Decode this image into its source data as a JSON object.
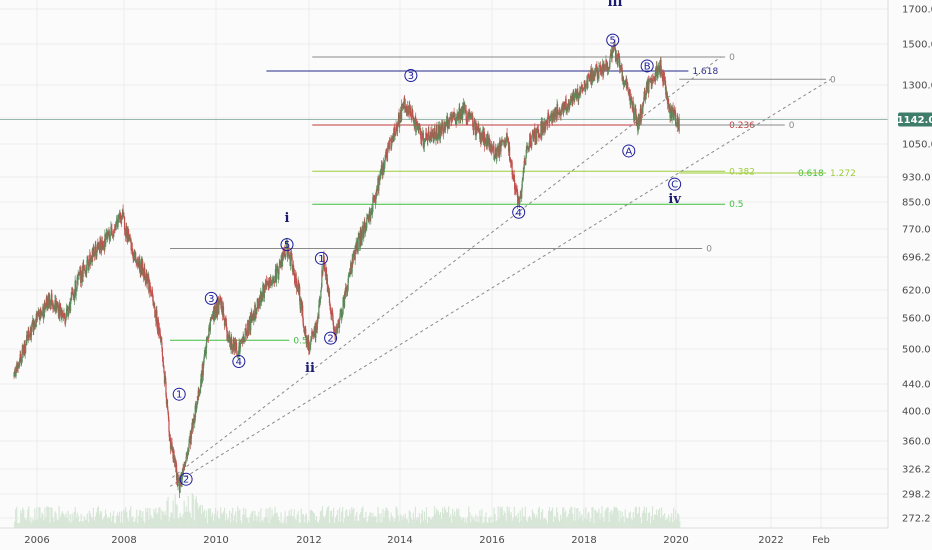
{
  "colors": {
    "background": "#fbfbfb",
    "grid": "#ececec",
    "candle_up": "#5c8a5c",
    "candle_down": "#c0504d",
    "volume": "#d7e6d7",
    "wave_label": "#1c1c9a",
    "price_tag_bg": "#3e7d6a",
    "fib_navy": "#2a2a8a",
    "fib_red": "#c23b3b",
    "fib_green": "#3fbf3f",
    "fib_lime": "#9ccc3a",
    "fib_grey": "#8a8a8a",
    "trendline": "#8a8a8a"
  },
  "chart_data": {
    "type": "candlestick",
    "y_scale": "log",
    "ylim": [
      265,
      1800
    ],
    "y_ticks": [
      "1700.0",
      "1500.0",
      "1300.0",
      "1150.0",
      "1050.0",
      "930.0",
      "850.0",
      "770.0",
      "696.2",
      "620.0",
      "560.0",
      "500.0",
      "440.0",
      "400.0",
      "360.0",
      "326.2",
      "298.2",
      "272.2"
    ],
    "x_ticks": [
      "2006",
      "2008",
      "2010",
      "2012",
      "2014",
      "2016",
      "2018",
      "2020",
      "2022",
      "Feb"
    ],
    "last_price": "1142.0",
    "price_path": [
      [
        2005.5,
        460
      ],
      [
        2005.9,
        540
      ],
      [
        2006.3,
        600
      ],
      [
        2006.6,
        560
      ],
      [
        2006.9,
        640
      ],
      [
        2007.2,
        700
      ],
      [
        2007.5,
        740
      ],
      [
        2007.85,
        810
      ],
      [
        2008.1,
        700
      ],
      [
        2008.4,
        650
      ],
      [
        2008.7,
        520
      ],
      [
        2008.9,
        360
      ],
      [
        2009.1,
        305
      ],
      [
        2009.3,
        350
      ],
      [
        2009.6,
        460
      ],
      [
        2009.8,
        560
      ],
      [
        2010.0,
        590
      ],
      [
        2010.2,
        510
      ],
      [
        2010.4,
        500
      ],
      [
        2010.6,
        540
      ],
      [
        2010.9,
        610
      ],
      [
        2011.2,
        650
      ],
      [
        2011.45,
        720
      ],
      [
        2011.7,
        620
      ],
      [
        2011.9,
        500
      ],
      [
        2012.1,
        540
      ],
      [
        2012.25,
        690
      ],
      [
        2012.5,
        520
      ],
      [
        2012.7,
        600
      ],
      [
        2012.9,
        700
      ],
      [
        2013.3,
        830
      ],
      [
        2013.6,
        1000
      ],
      [
        2014.0,
        1200
      ],
      [
        2014.2,
        1150
      ],
      [
        2014.4,
        1060
      ],
      [
        2014.8,
        1100
      ],
      [
        2015.3,
        1180
      ],
      [
        2015.6,
        1100
      ],
      [
        2016.0,
        1010
      ],
      [
        2016.25,
        1060
      ],
      [
        2016.5,
        830
      ],
      [
        2016.7,
        1050
      ],
      [
        2017.2,
        1150
      ],
      [
        2017.8,
        1250
      ],
      [
        2018.1,
        1340
      ],
      [
        2018.4,
        1380
      ],
      [
        2018.6,
        1460
      ],
      [
        2018.9,
        1250
      ],
      [
        2019.1,
        1120
      ],
      [
        2019.3,
        1280
      ],
      [
        2019.6,
        1380
      ],
      [
        2019.8,
        1180
      ],
      [
        2020.0,
        1120
      ]
    ],
    "volume_level": 0.25,
    "fib_lines": [
      {
        "from": 2012.0,
        "to": 2021.0,
        "price": 1430,
        "color": "grey",
        "label": "0"
      },
      {
        "from": 2011.0,
        "to": 2020.2,
        "price": 1360,
        "color": "navy",
        "label": "1.618"
      },
      {
        "from": 2020.0,
        "to": 2023.2,
        "price": 1320,
        "color": "grey",
        "label": "0"
      },
      {
        "from": 2012.0,
        "to": 2021.0,
        "price": 1120,
        "color": "red",
        "label": "0.236"
      },
      {
        "from": 2019.0,
        "to": 2022.3,
        "price": 1120,
        "color": "grey",
        "label": "0"
      },
      {
        "from": 2012.0,
        "to": 2021.0,
        "price": 948,
        "color": "lime",
        "label": "0.382"
      },
      {
        "from": 2020.0,
        "to": 2022.5,
        "price": 942,
        "color": "green",
        "label": "0.618"
      },
      {
        "from": 2020.0,
        "to": 2023.2,
        "price": 942,
        "color": "lime",
        "label": "1.272"
      },
      {
        "from": 2012.0,
        "to": 2021.0,
        "price": 842,
        "color": "green",
        "label": "0.5"
      },
      {
        "from": 2008.9,
        "to": 2020.5,
        "price": 718,
        "color": "grey",
        "label": "0"
      },
      {
        "from": 2008.9,
        "to": 2011.5,
        "price": 516,
        "color": "green",
        "label": "0.5"
      }
    ],
    "trendlines": [
      {
        "x1": 2008.95,
        "y1": 315,
        "x2": 2020.9,
        "y2": 1430,
        "dash": true
      },
      {
        "x1": 2008.9,
        "y1": 305,
        "x2": 2023.3,
        "y2": 1320,
        "dash": true
      }
    ],
    "wave_labels": [
      {
        "text": "1",
        "x": 2009.1,
        "y": 425
      },
      {
        "text": "2",
        "x": 2009.25,
        "y": 313
      },
      {
        "text": "3",
        "x": 2009.8,
        "y": 600
      },
      {
        "text": "4",
        "x": 2010.4,
        "y": 478
      },
      {
        "text": "5",
        "x": 2011.45,
        "y": 728
      },
      {
        "text": "1",
        "x": 2012.2,
        "y": 693
      },
      {
        "text": "2",
        "x": 2012.4,
        "y": 520
      },
      {
        "text": "3",
        "x": 2014.15,
        "y": 1338
      },
      {
        "text": "4",
        "x": 2016.5,
        "y": 818
      },
      {
        "text": "5",
        "x": 2018.55,
        "y": 1520
      },
      {
        "text": "B",
        "x": 2019.3,
        "y": 1385
      },
      {
        "text": "A",
        "x": 2018.9,
        "y": 1020
      },
      {
        "text": "C",
        "x": 2019.9,
        "y": 905
      }
    ],
    "roman_labels": [
      {
        "text": "i",
        "x": 2011.45,
        "y": 790
      },
      {
        "text": "ii",
        "x": 2011.95,
        "y": 460
      },
      {
        "text": "iii",
        "x": 2018.6,
        "y": 1720
      },
      {
        "text": "iv",
        "x": 2019.9,
        "y": 845
      }
    ]
  }
}
